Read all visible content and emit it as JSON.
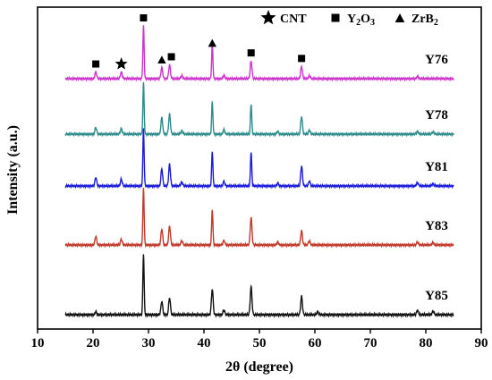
{
  "chart_data": {
    "type": "line",
    "xlabel": "2θ (degree)",
    "ylabel": "Intensity (a.u.)",
    "xlim": [
      10,
      90
    ],
    "x_ticks": [
      "10",
      "20",
      "30",
      "40",
      "50",
      "60",
      "70",
      "80",
      "90"
    ],
    "y_tick_labels": false,
    "grid": false,
    "legend_position": "top-center",
    "legend": [
      {
        "symbol": "star",
        "label": "CNT"
      },
      {
        "symbol": "square",
        "label": "Y",
        "sub1": "2",
        "mid": "O",
        "sub2": "3"
      },
      {
        "symbol": "triangle",
        "label": "ZrB",
        "sub1": "2",
        "mid": "",
        "sub2": ""
      }
    ],
    "x_range_data": [
      15,
      85
    ],
    "series": [
      {
        "name": "Y76",
        "color": "#cc33cc",
        "peaks": [
          {
            "x": 20.5,
            "h": 0.12
          },
          {
            "x": 25.1,
            "h": 0.12
          },
          {
            "x": 29.1,
            "h": 0.95
          },
          {
            "x": 32.4,
            "h": 0.2
          },
          {
            "x": 33.8,
            "h": 0.25
          },
          {
            "x": 36.0,
            "h": 0.05
          },
          {
            "x": 41.5,
            "h": 0.62
          },
          {
            "x": 43.6,
            "h": 0.06
          },
          {
            "x": 48.5,
            "h": 0.32
          },
          {
            "x": 57.6,
            "h": 0.22
          },
          {
            "x": 59.0,
            "h": 0.05
          },
          {
            "x": 78.5,
            "h": 0.04
          }
        ],
        "markers": [
          {
            "x": 20.5,
            "symbol": "square"
          },
          {
            "x": 25.1,
            "symbol": "star"
          },
          {
            "x": 29.1,
            "symbol": "square"
          },
          {
            "x": 32.4,
            "symbol": "triangle"
          },
          {
            "x": 33.8,
            "symbol": "square"
          },
          {
            "x": 41.5,
            "symbol": "triangle"
          },
          {
            "x": 48.5,
            "symbol": "square"
          },
          {
            "x": 57.6,
            "symbol": "square"
          }
        ]
      },
      {
        "name": "Y78",
        "color": "#2e8b8b",
        "peaks": [
          {
            "x": 20.5,
            "h": 0.12
          },
          {
            "x": 25.1,
            "h": 0.1
          },
          {
            "x": 29.1,
            "h": 0.92
          },
          {
            "x": 32.4,
            "h": 0.3
          },
          {
            "x": 33.8,
            "h": 0.36
          },
          {
            "x": 36.0,
            "h": 0.06
          },
          {
            "x": 41.5,
            "h": 0.58
          },
          {
            "x": 43.6,
            "h": 0.08
          },
          {
            "x": 48.5,
            "h": 0.55
          },
          {
            "x": 53.3,
            "h": 0.05
          },
          {
            "x": 57.6,
            "h": 0.32
          },
          {
            "x": 59.0,
            "h": 0.07
          },
          {
            "x": 78.5,
            "h": 0.05
          },
          {
            "x": 81.3,
            "h": 0.04
          }
        ]
      },
      {
        "name": "Y81",
        "color": "#1a1adb",
        "peaks": [
          {
            "x": 20.5,
            "h": 0.15
          },
          {
            "x": 25.1,
            "h": 0.12
          },
          {
            "x": 29.1,
            "h": 1.0
          },
          {
            "x": 32.4,
            "h": 0.3
          },
          {
            "x": 33.8,
            "h": 0.38
          },
          {
            "x": 36.0,
            "h": 0.07
          },
          {
            "x": 41.5,
            "h": 0.6
          },
          {
            "x": 43.6,
            "h": 0.08
          },
          {
            "x": 48.5,
            "h": 0.6
          },
          {
            "x": 53.3,
            "h": 0.05
          },
          {
            "x": 57.6,
            "h": 0.35
          },
          {
            "x": 59.0,
            "h": 0.08
          },
          {
            "x": 78.5,
            "h": 0.06
          },
          {
            "x": 81.3,
            "h": 0.04
          }
        ]
      },
      {
        "name": "Y83",
        "color": "#c0392b",
        "peaks": [
          {
            "x": 20.5,
            "h": 0.15
          },
          {
            "x": 25.1,
            "h": 0.1
          },
          {
            "x": 29.1,
            "h": 1.0
          },
          {
            "x": 32.4,
            "h": 0.28
          },
          {
            "x": 33.8,
            "h": 0.33
          },
          {
            "x": 36.0,
            "h": 0.07
          },
          {
            "x": 41.5,
            "h": 0.62
          },
          {
            "x": 43.6,
            "h": 0.08
          },
          {
            "x": 48.5,
            "h": 0.48
          },
          {
            "x": 53.3,
            "h": 0.05
          },
          {
            "x": 57.6,
            "h": 0.25
          },
          {
            "x": 59.0,
            "h": 0.07
          },
          {
            "x": 78.5,
            "h": 0.05
          },
          {
            "x": 81.3,
            "h": 0.04
          }
        ]
      },
      {
        "name": "Y85",
        "color": "#111111",
        "peaks": [
          {
            "x": 20.5,
            "h": 0.05
          },
          {
            "x": 29.1,
            "h": 1.0
          },
          {
            "x": 32.4,
            "h": 0.22
          },
          {
            "x": 33.8,
            "h": 0.28
          },
          {
            "x": 41.5,
            "h": 0.42
          },
          {
            "x": 43.6,
            "h": 0.08
          },
          {
            "x": 48.5,
            "h": 0.46
          },
          {
            "x": 57.6,
            "h": 0.3
          },
          {
            "x": 60.5,
            "h": 0.05
          },
          {
            "x": 78.5,
            "h": 0.07
          },
          {
            "x": 81.3,
            "h": 0.06
          }
        ]
      }
    ]
  }
}
